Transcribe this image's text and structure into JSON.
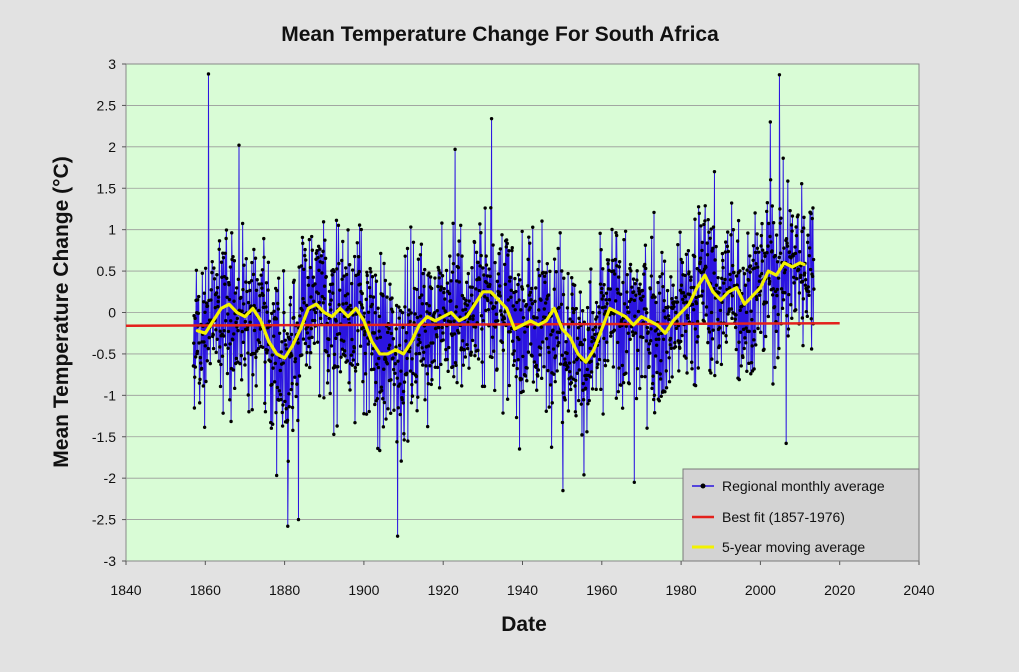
{
  "chart_data": {
    "type": "line",
    "title": "Mean Temperature Change For South Africa",
    "xlabel": "Date",
    "ylabel": "Mean  Temperature  Change  (°C)",
    "xlim": [
      1840,
      2040
    ],
    "ylim": [
      -3,
      3
    ],
    "xticks": [
      "1840",
      "1860",
      "1880",
      "1900",
      "1920",
      "1940",
      "1960",
      "1980",
      "2000",
      "2020",
      "2040"
    ],
    "yticks": [
      "3",
      "2.5",
      "2",
      "1.5",
      "1",
      "0.5",
      "0",
      "-0.5",
      "-1",
      "-1.5",
      "-2",
      "-2.5",
      "-3"
    ],
    "grid": true,
    "legend_position": "bottom-right",
    "colors": {
      "plot_background": "#d9fcd6",
      "page_background": "#e2e2e2",
      "legend_background": "#d3d3d3",
      "monthly": "#2b14e0",
      "marker": "#000000",
      "best_fit": "#e3211c",
      "moving_average": "#f2f200"
    },
    "series": [
      {
        "name": "Regional monthly average",
        "style": "line-with-markers",
        "x_range": [
          1857.0,
          2013.5
        ],
        "value_range": [
          -2.7,
          2.9
        ],
        "notable_points": [
          {
            "x": 1860.8,
            "y": 2.88
          },
          {
            "x": 1868.5,
            "y": 2.02
          },
          {
            "x": 1880.8,
            "y": -2.58
          },
          {
            "x": 1883.5,
            "y": -2.5
          },
          {
            "x": 1908.5,
            "y": -2.7
          },
          {
            "x": 1923.0,
            "y": 1.97
          },
          {
            "x": 1932.2,
            "y": 2.34
          },
          {
            "x": 1950.2,
            "y": -2.15
          },
          {
            "x": 1968.2,
            "y": -2.05
          },
          {
            "x": 2002.5,
            "y": 2.3
          },
          {
            "x": 2004.8,
            "y": 2.87
          },
          {
            "x": 2006.5,
            "y": -1.58
          }
        ]
      },
      {
        "name": "Best fit (1857-1976)",
        "style": "line",
        "x": [
          1840,
          2020
        ],
        "y": [
          -0.16,
          -0.13
        ]
      },
      {
        "name": "5-year moving average",
        "style": "line",
        "x": [
          1858,
          1860,
          1862,
          1864,
          1866,
          1868,
          1870,
          1872,
          1874,
          1876,
          1878,
          1880,
          1882,
          1884,
          1886,
          1888,
          1890,
          1892,
          1894,
          1896,
          1898,
          1900,
          1902,
          1904,
          1906,
          1908,
          1910,
          1912,
          1914,
          1916,
          1918,
          1920,
          1922,
          1924,
          1926,
          1928,
          1930,
          1932,
          1934,
          1936,
          1938,
          1940,
          1942,
          1944,
          1946,
          1948,
          1950,
          1952,
          1954,
          1956,
          1958,
          1960,
          1962,
          1964,
          1966,
          1968,
          1970,
          1972,
          1974,
          1976,
          1978,
          1980,
          1982,
          1984,
          1986,
          1988,
          1990,
          1992,
          1994,
          1996,
          1998,
          2000,
          2002,
          2004,
          2006,
          2008,
          2010,
          2011
        ],
        "y": [
          -0.22,
          -0.25,
          -0.1,
          0.05,
          0.1,
          0.0,
          -0.05,
          0.05,
          -0.1,
          -0.35,
          -0.5,
          -0.55,
          -0.4,
          -0.2,
          0.05,
          0.1,
          0.0,
          -0.05,
          0.05,
          -0.05,
          0.05,
          -0.1,
          -0.35,
          -0.5,
          -0.5,
          -0.45,
          -0.5,
          -0.35,
          -0.15,
          -0.05,
          -0.1,
          -0.05,
          0.0,
          -0.1,
          -0.05,
          0.1,
          0.25,
          0.25,
          0.15,
          0.05,
          -0.2,
          -0.15,
          -0.1,
          -0.15,
          -0.1,
          0.05,
          -0.2,
          -0.3,
          -0.5,
          -0.6,
          -0.45,
          -0.2,
          0.05,
          0.0,
          -0.05,
          -0.15,
          -0.05,
          -0.1,
          -0.15,
          -0.25,
          -0.1,
          0.0,
          0.1,
          0.3,
          0.45,
          0.25,
          0.15,
          0.25,
          0.3,
          0.1,
          0.2,
          0.3,
          0.5,
          0.45,
          0.6,
          0.55,
          0.6,
          0.58
        ]
      }
    ]
  }
}
